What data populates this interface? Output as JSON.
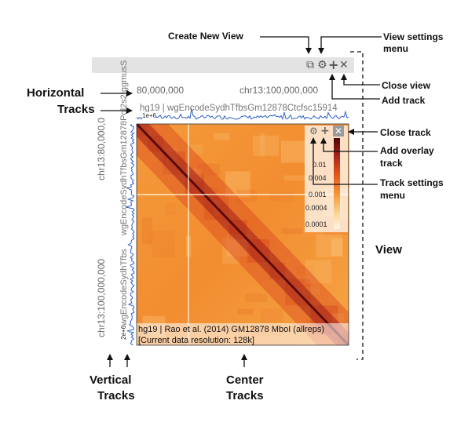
{
  "annotations": {
    "create_new_view": "Create New View",
    "view_settings": [
      "View settings",
      "menu"
    ],
    "close_view": "Close view",
    "add_track": "Add track",
    "close_track": "Close track",
    "add_overlay": [
      "Add overlay",
      "track"
    ],
    "track_settings": [
      "Track settings",
      "menu"
    ],
    "view": "View",
    "horizontal_tracks": [
      "Horizontal",
      "Tracks"
    ],
    "vertical_tracks": [
      "Vertical",
      "Tracks"
    ],
    "center_tracks": [
      "Center",
      "Tracks"
    ]
  },
  "view_toolbar": {
    "icons": [
      "copy-icon",
      "gear-icon",
      "plus-icon",
      "close-icon"
    ],
    "glyphs": [
      "⧉",
      "⚙",
      "+",
      "✕"
    ]
  },
  "axes": {
    "top_tick_1": "80,000,000",
    "top_tick_2": "chr13:100,000,000",
    "left_tick_1": "chr13:80,000,0",
    "left_tick_2": "chr13:100,000,000"
  },
  "horizontal_track": {
    "label": "hg19 | wgEncodeSydhTfbsGm12878Ctcfsc15914",
    "scale": "1e+6"
  },
  "vertical_track": {
    "label": "wgEncodeSydhTfbsGm12878Pol2s2IggmusS",
    "label_lower": "wgEncodeSydhTfbs",
    "scale": "2e+6"
  },
  "center_track": {
    "line1": "hg19 | Rao et al. (2014) GM12878 MboI (allreps)",
    "line2": "[Current data resolution: 128k]",
    "colorbar_ticks": [
      "0.01",
      "0.004",
      "0.001",
      "0.0004",
      "0.0001"
    ],
    "track_controls": [
      "gear-icon",
      "plus-icon",
      "close-icon"
    ],
    "track_glyphs": [
      "⚙",
      "+",
      "✕"
    ]
  },
  "colors": {
    "toolbar": "#e3e3e3",
    "heatmap_light": "#fbe3b4",
    "heatmap_mid": "#f4a03c",
    "heatmap_dark": "#5a0a0a",
    "track_line": "#2e5fc9"
  }
}
